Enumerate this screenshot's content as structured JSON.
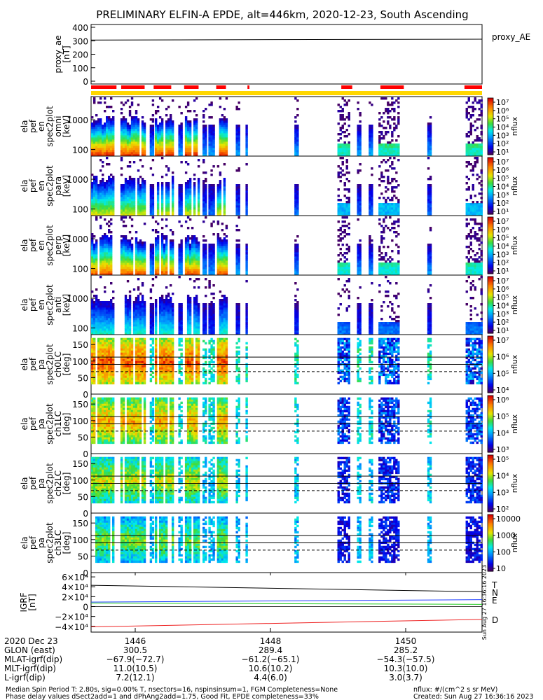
{
  "title": "PRELIMINARY ELFIN-A EPDE, alt=446km, 2020-12-23, South Ascending",
  "created_stamp": "Sun Aug 27 16:36:16 2023",
  "chart_data": [
    {
      "type": "line",
      "id": "proxy_ae",
      "ylabel": [
        "proxy_ae",
        "[nT]"
      ],
      "legend": "proxy_AE",
      "yticks": [
        "400",
        "300",
        "200",
        "100",
        "0"
      ],
      "ylim": [
        0,
        400
      ],
      "series": [
        {
          "name": "proxy_AE",
          "color": "#000000",
          "x": [
            0,
            1
          ],
          "y": [
            305,
            312
          ]
        }
      ]
    },
    {
      "type": "bar",
      "id": "science_zone_bar",
      "colors": {
        "science": "#ffd700",
        "segment": "#ff0000"
      }
    },
    {
      "type": "heatmap",
      "id": "pef_en_omni",
      "kind": "energy",
      "ylabel": [
        "ela",
        "pef",
        "en",
        "spec2plot",
        "omni",
        "[keV]"
      ],
      "yticks": [
        "1000",
        "100"
      ],
      "ylog": true,
      "ylim": [
        60,
        6000
      ],
      "cbar": {
        "ticks": [
          "10⁷",
          "10⁶",
          "10⁵",
          "10⁴",
          "10³",
          "10²",
          "10¹"
        ],
        "label": "nflux",
        "max": 7,
        "min": 1
      },
      "intensity": 1.0
    },
    {
      "type": "heatmap",
      "id": "pef_en_para",
      "kind": "energy",
      "ylabel": [
        "ela",
        "pef",
        "en",
        "spec2plot",
        "para",
        "[keV]"
      ],
      "yticks": [
        "1000",
        "100"
      ],
      "ylog": true,
      "ylim": [
        60,
        6000
      ],
      "cbar": {
        "ticks": [
          "10⁷",
          "10⁶",
          "10⁵",
          "10⁴",
          "10³",
          "10²",
          "10¹"
        ],
        "label": "nflux",
        "max": 7,
        "min": 1
      },
      "intensity": 0.7
    },
    {
      "type": "heatmap",
      "id": "pef_en_perp",
      "kind": "energy",
      "ylabel": [
        "ela",
        "pef",
        "en",
        "spec2plot",
        "perp",
        "[keV]"
      ],
      "yticks": [
        "1000",
        "100"
      ],
      "ylog": true,
      "ylim": [
        60,
        6000
      ],
      "cbar": {
        "ticks": [
          "10⁷",
          "10⁶",
          "10⁵",
          "10⁴",
          "10³",
          "10²",
          "10¹"
        ],
        "label": "nflux",
        "max": 7,
        "min": 1
      },
      "intensity": 0.95
    },
    {
      "type": "heatmap",
      "id": "pef_en_anti",
      "kind": "energy",
      "ylabel": [
        "ela",
        "pef",
        "en",
        "spec2plot",
        "anti",
        "[keV]"
      ],
      "yticks": [
        "1000",
        "100"
      ],
      "ylog": true,
      "ylim": [
        60,
        6000
      ],
      "cbar": {
        "ticks": [
          "10⁷",
          "10⁶",
          "10⁵",
          "10⁴",
          "10³",
          "10²",
          "10¹"
        ],
        "label": "nflux",
        "max": 7,
        "min": 1
      },
      "intensity": 0.45
    },
    {
      "type": "heatmap",
      "id": "pef_pa_ch0",
      "kind": "pa",
      "ylabel": [
        "ela",
        "pef",
        "pa",
        "spec2plot",
        "ch0LC",
        "[deg]"
      ],
      "yticks": [
        "150",
        "100",
        "50",
        "0"
      ],
      "ylim": [
        0,
        180
      ],
      "cbar": {
        "ticks": [
          "10⁷",
          "10⁶",
          "10⁵",
          "10⁴"
        ],
        "label": "nflux",
        "max": 7,
        "min": 3.8
      },
      "intensity": 1.0,
      "ref_lines": {
        "solid": [
          112,
          90
        ],
        "dashed": [
          68
        ]
      }
    },
    {
      "type": "heatmap",
      "id": "pef_pa_ch1",
      "kind": "pa",
      "ylabel": [
        "ela",
        "pef",
        "pa",
        "spec2plot",
        "ch1LC",
        "[deg]"
      ],
      "yticks": [
        "150",
        "100",
        "50",
        "0"
      ],
      "ylim": [
        0,
        180
      ],
      "cbar": {
        "ticks": [
          "10⁶",
          "10⁵",
          "10⁴",
          "10³"
        ],
        "label": "nflux",
        "max": 6.2,
        "min": 3
      },
      "intensity": 0.8,
      "ref_lines": {
        "solid": [
          112,
          90
        ],
        "dashed": [
          68
        ]
      }
    },
    {
      "type": "heatmap",
      "id": "pef_pa_ch2",
      "kind": "pa",
      "ylabel": [
        "ela",
        "pef",
        "pa",
        "spec2plot",
        "ch2LC",
        "[deg]"
      ],
      "yticks": [
        "150",
        "100",
        "50",
        "0"
      ],
      "ylim": [
        0,
        180
      ],
      "cbar": {
        "ticks": [
          "10⁵",
          "10⁴",
          "10³",
          "10²"
        ],
        "label": "nflux",
        "max": 5.5,
        "min": 2
      },
      "intensity": 0.6,
      "ref_lines": {
        "solid": [
          112,
          90
        ],
        "dashed": [
          68
        ]
      }
    },
    {
      "type": "heatmap",
      "id": "pef_pa_ch3",
      "kind": "pa",
      "ylabel": [
        "ela",
        "pef",
        "pa",
        "spec2plot",
        "ch3LC",
        "[deg]"
      ],
      "yticks": [
        "150",
        "100",
        "50",
        "0"
      ],
      "ylim": [
        0,
        180
      ],
      "cbar": {
        "ticks": [
          "10000",
          "1000",
          "100",
          "10"
        ],
        "label": "nflux",
        "max": 4.3,
        "min": 1
      },
      "intensity": 0.45,
      "ref_lines": {
        "solid": [
          112,
          90
        ],
        "dashed": [
          68
        ]
      }
    },
    {
      "type": "line",
      "id": "igrf",
      "ylabel": [
        "IGRF",
        "[nT]"
      ],
      "yticks": [
        "6×10⁴",
        "4×10⁴",
        "2×10⁴",
        "0",
        "−2×10⁴",
        "−4×10⁴"
      ],
      "ylim": [
        -46000,
        63000
      ],
      "stamp": "Sun Aug 27 16:36:16 2023",
      "series": [
        {
          "name": "T",
          "color": "#000000",
          "x": [
            0,
            1
          ],
          "y": [
            43000,
            30000
          ]
        },
        {
          "name": "N",
          "color": "#1f3fff",
          "x": [
            0,
            1
          ],
          "y": [
            9000,
            14000
          ]
        },
        {
          "name": "E",
          "color": "#22cc22",
          "x": [
            0,
            1
          ],
          "y": [
            7000,
            4500
          ]
        },
        {
          "name": "D",
          "color": "#ee2222",
          "x": [
            0,
            1
          ],
          "y": [
            -41000,
            -26000
          ]
        }
      ]
    }
  ],
  "time_axis": {
    "ticks": [
      "1446",
      "1448",
      "1450"
    ],
    "rows": [
      {
        "label": "2020 Dec 23",
        "values": [
          "",
          "",
          ""
        ]
      },
      {
        "label": "GLON (east)",
        "values": [
          "300.5",
          "289.4",
          "285.2"
        ]
      },
      {
        "label": "MLAT-igrf(dip)",
        "values": [
          "−67.9(−72.7)",
          "−61.2(−65.1)",
          "−54.3(−57.5)"
        ]
      },
      {
        "label": "MLT-igrf(dip)",
        "values": [
          "11.0(10.5)",
          "10.6(10.2)",
          "10.3(10.0)"
        ]
      },
      {
        "label": "L-igrf(dip)",
        "values": [
          "7.2(12.1)",
          "4.4(6.0)",
          "3.0(3.7)"
        ]
      }
    ]
  },
  "footer": {
    "line1": "Median Spin Period T: 2.80s, sig=0.00% T, nsectors=16, nspinsinsum=1, FGM Completeness=None",
    "line2": "Phase delay values dSect2add=1 and dPhAng2add=1.75, Good Fit, EPDE completeness=33%",
    "right1": "nflux: #/(cm^2 s sr MeV)",
    "right2": "Created: Sun Aug 27 16:36:16 2023"
  }
}
